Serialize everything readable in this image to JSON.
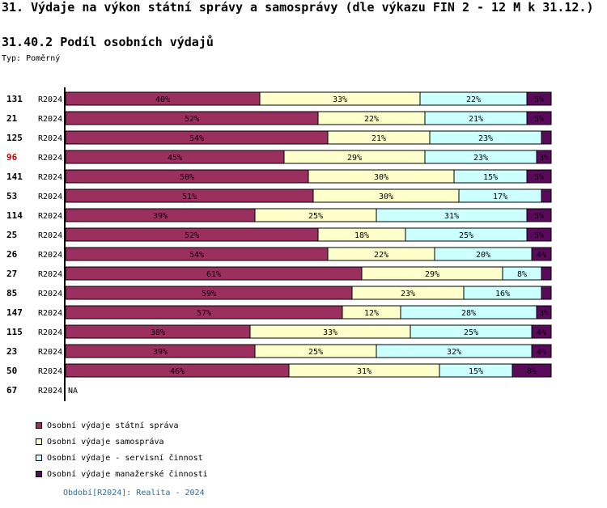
{
  "header": {
    "title": "31. Výdaje na výkon státní správy a samosprávy (dle výkazu FIN 2 - 12 M k 31.12.)",
    "subtitle": "31.40.2 Podíl osobních výdajů",
    "type_label": "Typ: Poměrný"
  },
  "colors": {
    "statni_sprava": "#9b3060",
    "samosprava": "#ffffcc",
    "servisni": "#ccffff",
    "manazerske": "#5a0a5a",
    "highlight_id": "#cc0000",
    "footer": "#1d6fa5"
  },
  "chart_data": {
    "type": "bar",
    "orientation": "horizontal",
    "stacked": true,
    "normalized": "percent",
    "rows": [
      {
        "id": "131",
        "period": "R2024",
        "values": [
          40,
          33,
          22,
          5
        ],
        "highlight": false
      },
      {
        "id": "21",
        "period": "R2024",
        "values": [
          52,
          22,
          21,
          5
        ],
        "highlight": false
      },
      {
        "id": "125",
        "period": "R2024",
        "values": [
          54,
          21,
          23,
          2
        ],
        "highlight": false
      },
      {
        "id": "96",
        "period": "R2024",
        "values": [
          45,
          29,
          23,
          3
        ],
        "highlight": true
      },
      {
        "id": "141",
        "period": "R2024",
        "values": [
          50,
          30,
          15,
          5
        ],
        "highlight": false
      },
      {
        "id": "53",
        "period": "R2024",
        "values": [
          51,
          30,
          17,
          2
        ],
        "highlight": false
      },
      {
        "id": "114",
        "period": "R2024",
        "values": [
          39,
          25,
          31,
          5
        ],
        "highlight": false
      },
      {
        "id": "25",
        "period": "R2024",
        "values": [
          52,
          18,
          25,
          5
        ],
        "highlight": false
      },
      {
        "id": "26",
        "period": "R2024",
        "values": [
          54,
          22,
          20,
          4
        ],
        "highlight": false
      },
      {
        "id": "27",
        "period": "R2024",
        "values": [
          61,
          29,
          8,
          2
        ],
        "highlight": false
      },
      {
        "id": "85",
        "period": "R2024",
        "values": [
          59,
          23,
          16,
          2
        ],
        "highlight": false
      },
      {
        "id": "147",
        "period": "R2024",
        "values": [
          57,
          12,
          28,
          3
        ],
        "highlight": false
      },
      {
        "id": "115",
        "period": "R2024",
        "values": [
          38,
          33,
          25,
          4
        ],
        "highlight": false
      },
      {
        "id": "23",
        "period": "R2024",
        "values": [
          39,
          25,
          32,
          4
        ],
        "highlight": false
      },
      {
        "id": "50",
        "period": "R2024",
        "values": [
          46,
          31,
          15,
          8
        ],
        "highlight": false
      },
      {
        "id": "67",
        "period": "R2024",
        "values": null,
        "na_label": "NA",
        "highlight": false
      }
    ],
    "series": [
      {
        "name": "Osobní výdaje státní správa",
        "color_key": "statni_sprava"
      },
      {
        "name": "Osobní výdaje samospráva",
        "color_key": "samosprava"
      },
      {
        "name": "Osobní výdaje - servisní činnost",
        "color_key": "servisni"
      },
      {
        "name": "Osobní výdaje manažerské činnosti",
        "color_key": "manazerske"
      }
    ],
    "labels_shown": {
      "131": [
        "40%",
        "33%",
        "22%",
        "5%"
      ],
      "21": [
        "52%",
        "22%",
        "21%",
        "5%"
      ],
      "125": [
        "54%",
        "21%",
        "23%",
        ""
      ],
      "96": [
        "45%",
        "29%",
        "23%",
        "3%"
      ],
      "141": [
        "50%",
        "30%",
        "15%",
        "5%"
      ],
      "53": [
        "51%",
        "30%",
        "17%",
        ""
      ],
      "114": [
        "39%",
        "25%",
        "31%",
        "5%"
      ],
      "25": [
        "52%",
        "18%",
        "25%",
        "5%"
      ],
      "26": [
        "54%",
        "22%",
        "20%",
        "4%"
      ],
      "27": [
        "61%",
        "29%",
        "8%",
        ""
      ],
      "85": [
        "59%",
        "23%",
        "16%",
        ""
      ],
      "147": [
        "57%",
        "12%",
        "28%",
        "3%"
      ],
      "115": [
        "38%",
        "33%",
        "25%",
        "4%"
      ],
      "23": [
        "39%",
        "25%",
        "32%",
        "4%"
      ],
      "50": [
        "46%",
        "31%",
        "15%",
        "8%"
      ]
    }
  },
  "footer": {
    "text": "Období[R2024]: Realita - 2024"
  }
}
